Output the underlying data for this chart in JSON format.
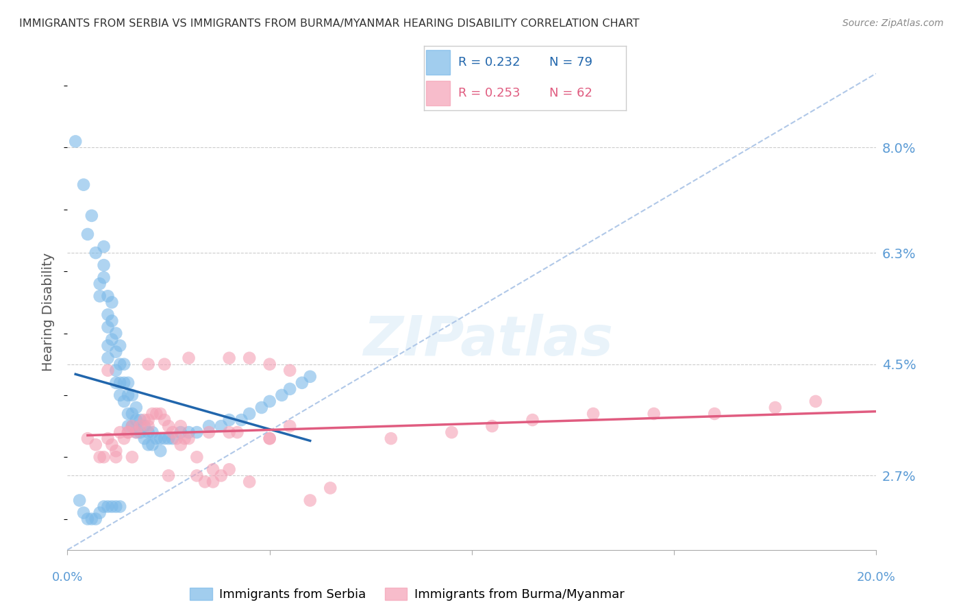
{
  "title": "IMMIGRANTS FROM SERBIA VS IMMIGRANTS FROM BURMA/MYANMAR HEARING DISABILITY CORRELATION CHART",
  "source": "Source: ZipAtlas.com",
  "ylabel": "Hearing Disability",
  "ytick_labels": [
    "2.7%",
    "4.5%",
    "6.3%",
    "8.0%"
  ],
  "ytick_values": [
    0.027,
    0.045,
    0.063,
    0.08
  ],
  "xlim": [
    0.0,
    0.2
  ],
  "ylim": [
    0.015,
    0.092
  ],
  "legend_serbia_R": "0.232",
  "legend_serbia_N": "79",
  "legend_burma_R": "0.253",
  "legend_burma_N": "62",
  "color_serbia": "#7ab8e8",
  "color_burma": "#f4a0b5",
  "color_serbia_line": "#2166ac",
  "color_burma_line": "#e05c80",
  "color_diag_line": "#b0c8e8",
  "color_axis_labels": "#5b9bd5",
  "serbia_x": [
    0.002,
    0.004,
    0.005,
    0.006,
    0.007,
    0.008,
    0.008,
    0.009,
    0.009,
    0.009,
    0.01,
    0.01,
    0.01,
    0.01,
    0.01,
    0.011,
    0.011,
    0.011,
    0.012,
    0.012,
    0.012,
    0.012,
    0.013,
    0.013,
    0.013,
    0.013,
    0.014,
    0.014,
    0.014,
    0.015,
    0.015,
    0.015,
    0.015,
    0.016,
    0.016,
    0.016,
    0.017,
    0.017,
    0.017,
    0.018,
    0.018,
    0.019,
    0.019,
    0.02,
    0.02,
    0.021,
    0.021,
    0.022,
    0.023,
    0.023,
    0.024,
    0.025,
    0.026,
    0.028,
    0.03,
    0.032,
    0.035,
    0.038,
    0.04,
    0.043,
    0.045,
    0.048,
    0.05,
    0.053,
    0.055,
    0.058,
    0.06,
    0.003,
    0.004,
    0.005,
    0.006,
    0.007,
    0.008,
    0.009,
    0.01,
    0.011,
    0.012,
    0.013
  ],
  "serbia_y": [
    0.081,
    0.074,
    0.066,
    0.069,
    0.063,
    0.058,
    0.056,
    0.064,
    0.061,
    0.059,
    0.056,
    0.053,
    0.051,
    0.048,
    0.046,
    0.055,
    0.052,
    0.049,
    0.05,
    0.047,
    0.044,
    0.042,
    0.048,
    0.045,
    0.042,
    0.04,
    0.045,
    0.042,
    0.039,
    0.042,
    0.04,
    0.037,
    0.035,
    0.04,
    0.037,
    0.035,
    0.038,
    0.036,
    0.034,
    0.036,
    0.034,
    0.035,
    0.033,
    0.034,
    0.032,
    0.034,
    0.032,
    0.033,
    0.033,
    0.031,
    0.033,
    0.033,
    0.033,
    0.034,
    0.034,
    0.034,
    0.035,
    0.035,
    0.036,
    0.036,
    0.037,
    0.038,
    0.039,
    0.04,
    0.041,
    0.042,
    0.043,
    0.023,
    0.021,
    0.02,
    0.02,
    0.02,
    0.021,
    0.022,
    0.022,
    0.022,
    0.022,
    0.022
  ],
  "burma_x": [
    0.005,
    0.007,
    0.009,
    0.01,
    0.011,
    0.012,
    0.013,
    0.014,
    0.015,
    0.016,
    0.017,
    0.018,
    0.019,
    0.02,
    0.021,
    0.022,
    0.023,
    0.024,
    0.025,
    0.026,
    0.027,
    0.028,
    0.029,
    0.03,
    0.032,
    0.034,
    0.036,
    0.038,
    0.04,
    0.042,
    0.045,
    0.05,
    0.055,
    0.065,
    0.08,
    0.095,
    0.105,
    0.115,
    0.13,
    0.145,
    0.16,
    0.175,
    0.185,
    0.01,
    0.015,
    0.02,
    0.025,
    0.03,
    0.035,
    0.04,
    0.05,
    0.06,
    0.008,
    0.012,
    0.016,
    0.02,
    0.024,
    0.028,
    0.032,
    0.036,
    0.04,
    0.045,
    0.05,
    0.055
  ],
  "burma_y": [
    0.033,
    0.032,
    0.03,
    0.033,
    0.032,
    0.031,
    0.034,
    0.033,
    0.034,
    0.035,
    0.034,
    0.035,
    0.036,
    0.036,
    0.037,
    0.037,
    0.037,
    0.036,
    0.035,
    0.034,
    0.033,
    0.032,
    0.033,
    0.033,
    0.027,
    0.026,
    0.026,
    0.027,
    0.028,
    0.034,
    0.026,
    0.033,
    0.035,
    0.025,
    0.033,
    0.034,
    0.035,
    0.036,
    0.037,
    0.037,
    0.037,
    0.038,
    0.039,
    0.044,
    0.034,
    0.035,
    0.027,
    0.046,
    0.034,
    0.034,
    0.033,
    0.023,
    0.03,
    0.03,
    0.03,
    0.045,
    0.045,
    0.035,
    0.03,
    0.028,
    0.046,
    0.046,
    0.045,
    0.044
  ]
}
